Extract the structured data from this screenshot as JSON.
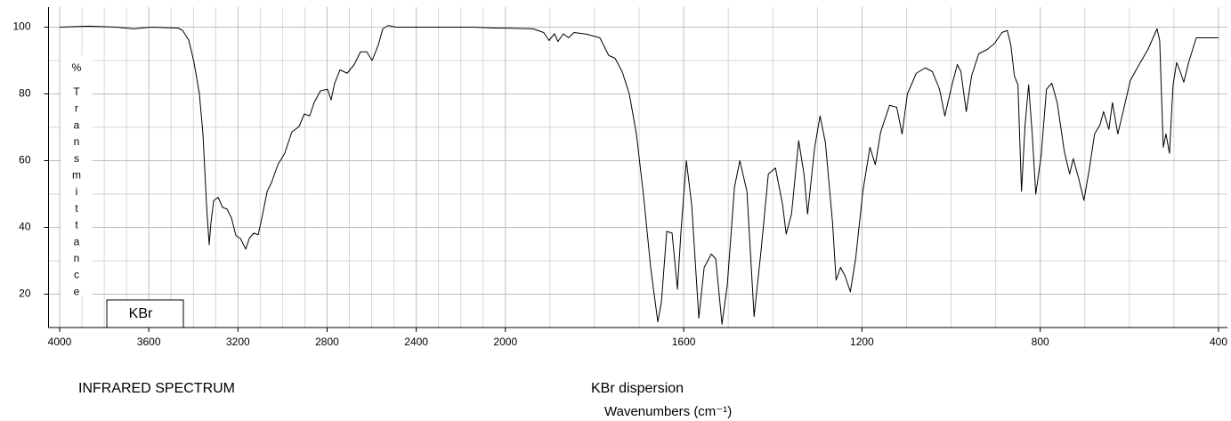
{
  "chart_data": {
    "type": "line",
    "title": "INFRARED SPECTRUM",
    "subtitle": "KBr dispersion",
    "annotation": "KBr",
    "xlabel": "Wavenumbers (cm⁻¹)",
    "ylabel_unit": "%",
    "ylabel": "Transmittance",
    "color": "#000000",
    "grid": true,
    "xlim": [
      4050,
      380
    ],
    "xscale_break": 2000,
    "xticks": [
      4000,
      3600,
      3200,
      2800,
      2400,
      2000,
      1600,
      1200,
      800,
      400
    ],
    "xminor_ticks": [
      3900,
      3800,
      3700,
      3500,
      3400,
      3300,
      3100,
      3000,
      2900,
      2700,
      2600,
      2500,
      2300,
      2200,
      2100,
      1900,
      1800,
      1700,
      1500,
      1400,
      1300,
      1100,
      1000,
      900,
      700,
      600,
      500
    ],
    "ylim": [
      10,
      106
    ],
    "yticks": [
      20,
      40,
      60,
      80,
      100
    ],
    "yminor_ticks": [
      30,
      50,
      70,
      90
    ],
    "x": [
      4000,
      3868,
      3748,
      3668,
      3588,
      3468,
      3448,
      3420,
      3397,
      3373,
      3357,
      3341,
      3329,
      3321,
      3309,
      3289,
      3269,
      3249,
      3229,
      3209,
      3189,
      3165,
      3149,
      3129,
      3109,
      3089,
      3069,
      3049,
      3021,
      2990,
      2958,
      2926,
      2902,
      2878,
      2858,
      2830,
      2798,
      2782,
      2766,
      2742,
      2710,
      2678,
      2650,
      2622,
      2598,
      2570,
      2550,
      2526,
      2490,
      2430,
      2350,
      2270,
      2150,
      2036,
      2000,
      1938,
      1914,
      1902,
      1890,
      1882,
      1870,
      1858,
      1846,
      1818,
      1788,
      1768,
      1754,
      1738,
      1722,
      1706,
      1690,
      1674,
      1658,
      1650,
      1638,
      1626,
      1614,
      1606,
      1594,
      1582,
      1566,
      1554,
      1538,
      1528,
      1514,
      1502,
      1486,
      1474,
      1458,
      1442,
      1426,
      1410,
      1394,
      1378,
      1370,
      1358,
      1342,
      1330,
      1322,
      1306,
      1294,
      1282,
      1266,
      1258,
      1248,
      1238,
      1226,
      1214,
      1198,
      1182,
      1170,
      1158,
      1138,
      1122,
      1110,
      1098,
      1078,
      1058,
      1042,
      1026,
      1014,
      998,
      986,
      978,
      966,
      954,
      938,
      918,
      902,
      886,
      874,
      866,
      858,
      850,
      842,
      834,
      826,
      818,
      810,
      798,
      786,
      774,
      762,
      746,
      734,
      726,
      714,
      702,
      690,
      678,
      666,
      658,
      646,
      638,
      626,
      614,
      598,
      578,
      558,
      538,
      532,
      524,
      518,
      510,
      502,
      494,
      486,
      478,
      466,
      450,
      426,
      400
    ],
    "values": [
      100,
      100.3,
      100,
      99.5,
      100,
      99.7,
      99,
      96,
      89.4,
      80,
      68,
      46.8,
      34.8,
      41.5,
      48,
      49,
      46,
      45.5,
      42.8,
      37.5,
      36.7,
      33.5,
      36.7,
      38.3,
      37.8,
      44,
      50.8,
      53.5,
      58.8,
      62.2,
      68.6,
      70.2,
      74,
      73.4,
      77.4,
      80.9,
      81.4,
      78.2,
      83.2,
      87.2,
      86.2,
      88.8,
      92.6,
      92.6,
      90,
      94.7,
      99.5,
      100.5,
      100,
      100,
      100,
      100,
      100,
      99.7,
      99.7,
      99.5,
      98.4,
      96,
      98,
      95.7,
      98,
      96.8,
      98.4,
      97.9,
      96.8,
      91.5,
      90.7,
      86.7,
      80,
      68,
      49.5,
      28,
      11.7,
      17.5,
      38.8,
      38.3,
      21.5,
      38.8,
      60,
      46.8,
      12.8,
      28,
      32,
      30.6,
      11,
      22.9,
      52,
      60,
      50.8,
      13.3,
      33.5,
      56,
      57.8,
      46.8,
      38,
      44,
      66,
      56,
      44,
      64,
      73.4,
      65.4,
      41.5,
      24.2,
      28,
      25.5,
      20.7,
      30.8,
      50.8,
      64,
      58.8,
      68.6,
      76.6,
      76,
      68,
      80,
      86.2,
      87.8,
      86.7,
      81.4,
      73.4,
      82.7,
      88.8,
      86.7,
      74.7,
      85.4,
      92,
      93.4,
      95.2,
      98.4,
      99,
      94.7,
      85.4,
      82.7,
      50.8,
      70.7,
      82.7,
      68,
      50,
      61.4,
      81.4,
      83.2,
      77.4,
      62.8,
      56,
      60.6,
      54.8,
      48.1,
      57.4,
      68,
      70.7,
      74.7,
      69.4,
      77.4,
      68,
      74.7,
      84,
      88.8,
      93.4,
      99.5,
      96,
      64,
      68,
      62.2,
      82.7,
      89.4,
      86.7,
      83.5,
      89.9,
      96.8,
      96.8,
      96.8
    ]
  }
}
